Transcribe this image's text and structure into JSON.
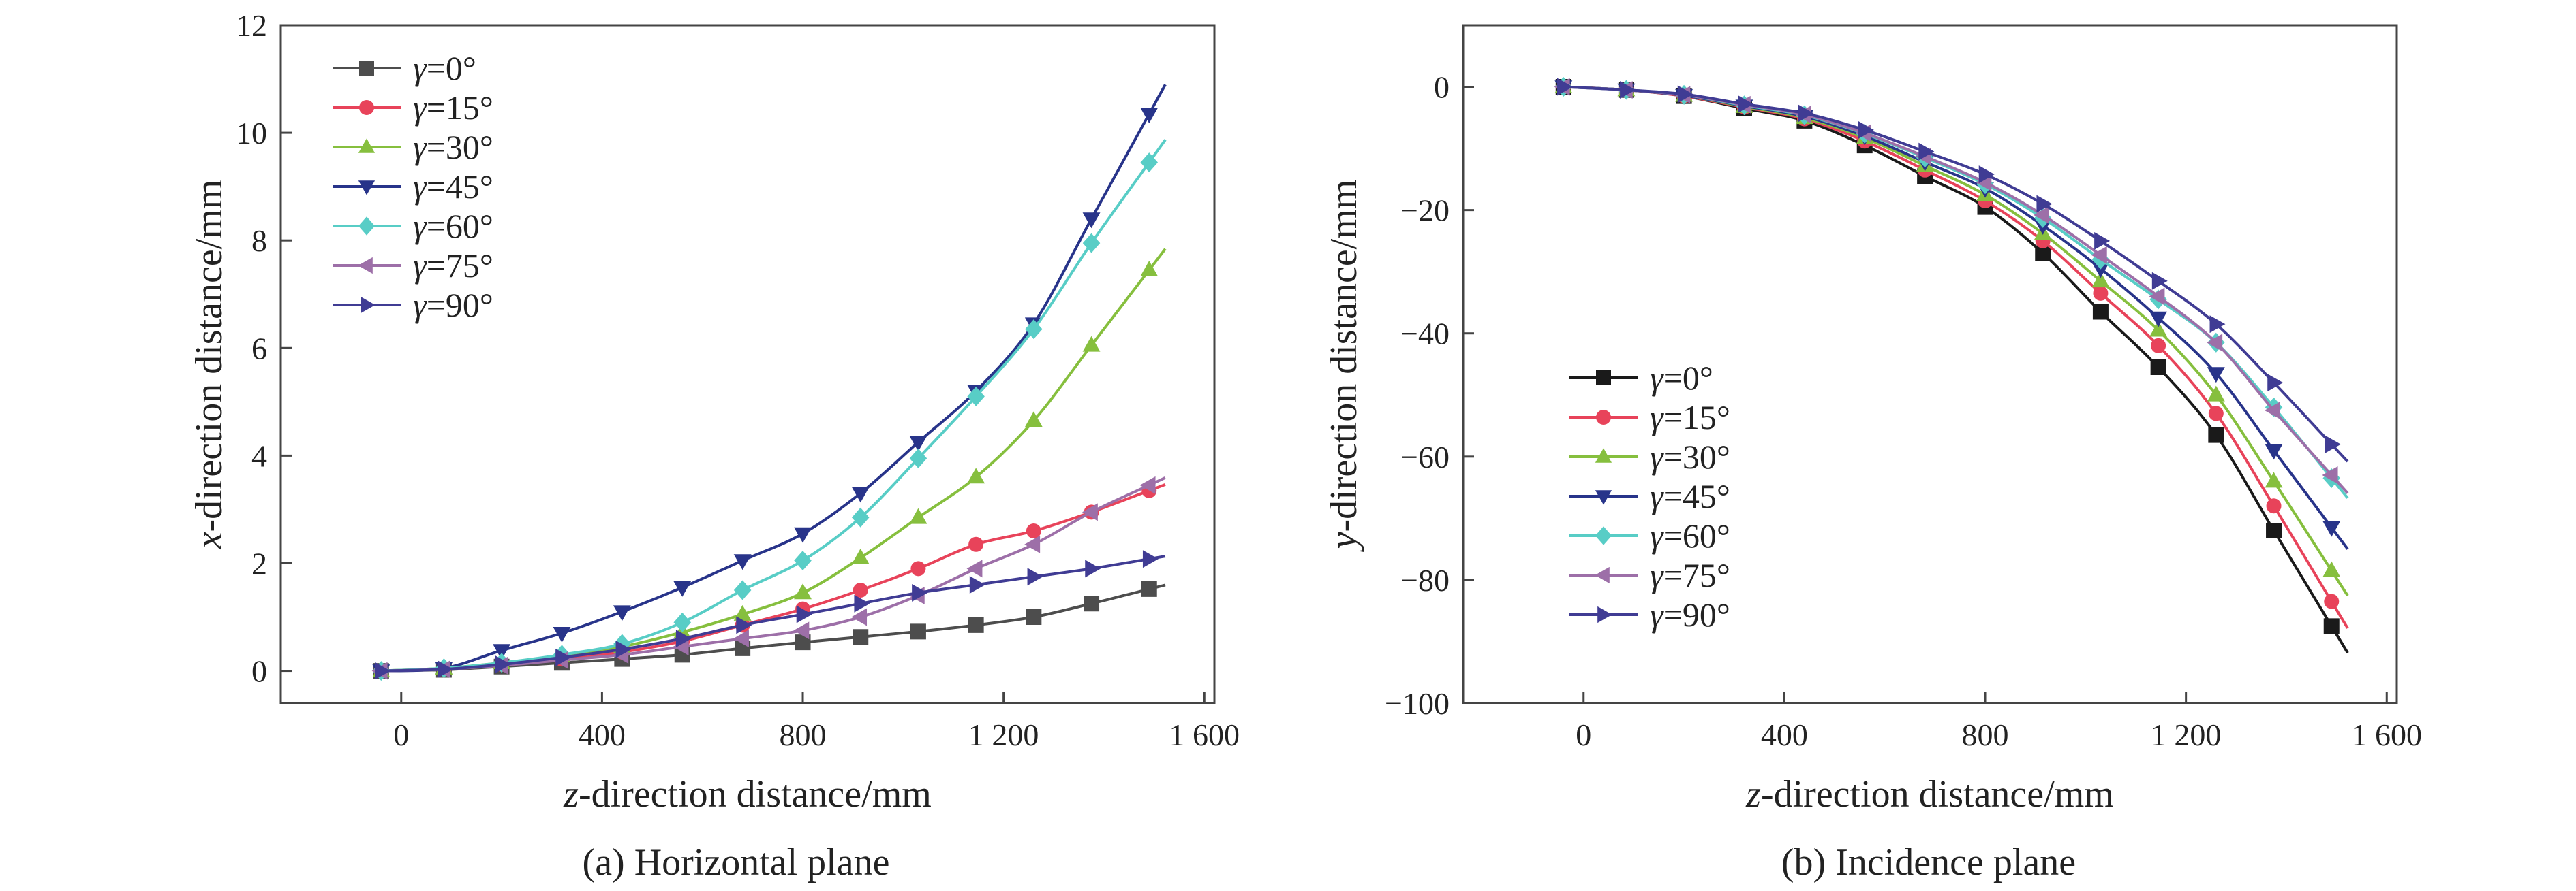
{
  "chart_data": [
    {
      "type": "line",
      "caption": "(a) Horizontal plane",
      "xlabel": "z-direction distance/mm",
      "ylabel": "x-direction distance/mm",
      "xlim": [
        -240,
        1620
      ],
      "ylim": [
        -0.6,
        12
      ],
      "xticks": [
        0,
        400,
        800,
        1200,
        1600
      ],
      "xtick_labels": [
        "0",
        "400",
        "800",
        "1 200",
        "1 600"
      ],
      "yticks": [
        0,
        2,
        4,
        6,
        8,
        10,
        12
      ],
      "ytick_labels": [
        "0",
        "2",
        "4",
        "6",
        "8",
        "10",
        "12"
      ],
      "legend_position": "top-left",
      "x": [
        -40,
        85,
        200,
        320,
        440,
        560,
        680,
        800,
        915,
        1030,
        1145,
        1260,
        1375,
        1490
      ],
      "series": [
        {
          "name": "γ=0°",
          "color": "#4d4d4d",
          "marker": "square",
          "values": [
            0,
            0.02,
            0.08,
            0.15,
            0.22,
            0.3,
            0.42,
            0.53,
            0.63,
            0.73,
            0.85,
            1.0,
            1.25,
            1.52
          ]
        },
        {
          "name": "γ=15°",
          "color": "#e8435a",
          "marker": "circle",
          "values": [
            0,
            0.04,
            0.12,
            0.22,
            0.35,
            0.55,
            0.85,
            1.15,
            1.5,
            1.9,
            2.35,
            2.6,
            2.95,
            3.35
          ]
        },
        {
          "name": "γ=30°",
          "color": "#86bf3e",
          "marker": "triangle-up",
          "values": [
            0,
            0.05,
            0.15,
            0.28,
            0.45,
            0.72,
            1.05,
            1.45,
            2.1,
            2.85,
            3.6,
            4.65,
            6.05,
            7.45
          ]
        },
        {
          "name": "γ=45°",
          "color": "#28348a",
          "marker": "triangle-down",
          "values": [
            0,
            0.05,
            0.38,
            0.7,
            1.1,
            1.55,
            2.05,
            2.55,
            3.3,
            4.25,
            5.2,
            6.45,
            8.4,
            10.35
          ]
        },
        {
          "name": "γ=60°",
          "color": "#58cdc6",
          "marker": "diamond",
          "values": [
            0,
            0.05,
            0.15,
            0.3,
            0.5,
            0.9,
            1.5,
            2.05,
            2.85,
            3.95,
            5.1,
            6.35,
            7.95,
            9.45
          ]
        },
        {
          "name": "γ=75°",
          "color": "#9d6fa8",
          "marker": "triangle-left",
          "values": [
            0,
            0.03,
            0.1,
            0.2,
            0.3,
            0.45,
            0.6,
            0.75,
            1.0,
            1.4,
            1.9,
            2.35,
            2.95,
            3.45
          ]
        },
        {
          "name": "γ=90°",
          "color": "#403c94",
          "marker": "triangle-right",
          "values": [
            0,
            0.03,
            0.12,
            0.25,
            0.4,
            0.6,
            0.85,
            1.05,
            1.25,
            1.45,
            1.6,
            1.75,
            1.9,
            2.08
          ]
        }
      ]
    },
    {
      "type": "line",
      "caption": "(b) Incidence plane",
      "xlabel": "z-direction distance/mm",
      "ylabel": "y-direction distance/mm",
      "xlim": [
        -240,
        1620
      ],
      "ylim": [
        -100,
        10
      ],
      "xticks": [
        0,
        400,
        800,
        1200,
        1600
      ],
      "xtick_labels": [
        "0",
        "400",
        "800",
        "1 200",
        "1 600"
      ],
      "yticks": [
        0,
        -20,
        -40,
        -60,
        -80,
        -100
      ],
      "ytick_labels": [
        "0",
        "−20",
        "−40",
        "−60",
        "−80",
        "−100"
      ],
      "legend_position": "bottom-left",
      "x": [
        -40,
        85,
        200,
        320,
        440,
        560,
        680,
        800,
        915,
        1030,
        1145,
        1260,
        1375,
        1490
      ],
      "series": [
        {
          "name": "γ=0°",
          "color": "#1a1a1a",
          "marker": "square",
          "values": [
            0,
            -0.5,
            -1.5,
            -3.5,
            -5.5,
            -9.5,
            -14.5,
            -19.5,
            -27,
            -36.5,
            -45.5,
            -56.5,
            -72,
            -87.5
          ]
        },
        {
          "name": "γ=15°",
          "color": "#e8435a",
          "marker": "circle",
          "values": [
            0,
            -0.5,
            -1.5,
            -3.3,
            -5.2,
            -8.8,
            -13.5,
            -18.5,
            -25,
            -33.5,
            -42,
            -53,
            -68,
            -83.5
          ]
        },
        {
          "name": "γ=30°",
          "color": "#86bf3e",
          "marker": "triangle-up",
          "values": [
            0,
            -0.5,
            -1.4,
            -3.2,
            -5,
            -8.3,
            -12.8,
            -17.5,
            -23.8,
            -31.5,
            -39.5,
            -50,
            -64,
            -78.5
          ]
        },
        {
          "name": "γ=45°",
          "color": "#28348a",
          "marker": "triangle-down",
          "values": [
            0,
            -0.5,
            -1.4,
            -3.1,
            -4.8,
            -8,
            -12.2,
            -16.5,
            -22.5,
            -29.5,
            -37.5,
            -46.5,
            -59,
            -71.5
          ]
        },
        {
          "name": "γ=60°",
          "color": "#58cdc6",
          "marker": "diamond",
          "values": [
            0,
            -0.5,
            -1.3,
            -3,
            -4.6,
            -7.6,
            -11.5,
            -15.8,
            -21.3,
            -28,
            -34.5,
            -41.5,
            -52,
            -63.5
          ]
        },
        {
          "name": "γ=75°",
          "color": "#9d6fa8",
          "marker": "triangle-left",
          "values": [
            0,
            -0.5,
            -1.3,
            -2.9,
            -4.5,
            -7.5,
            -11.3,
            -15.5,
            -20.8,
            -27.3,
            -34,
            -41.5,
            -52.5,
            -63
          ]
        },
        {
          "name": "γ=90°",
          "color": "#403c94",
          "marker": "triangle-right",
          "values": [
            0,
            -0.5,
            -1.2,
            -2.8,
            -4.3,
            -7,
            -10.5,
            -14.2,
            -19,
            -25,
            -31.5,
            -38.5,
            -48,
            -58
          ]
        }
      ]
    }
  ]
}
